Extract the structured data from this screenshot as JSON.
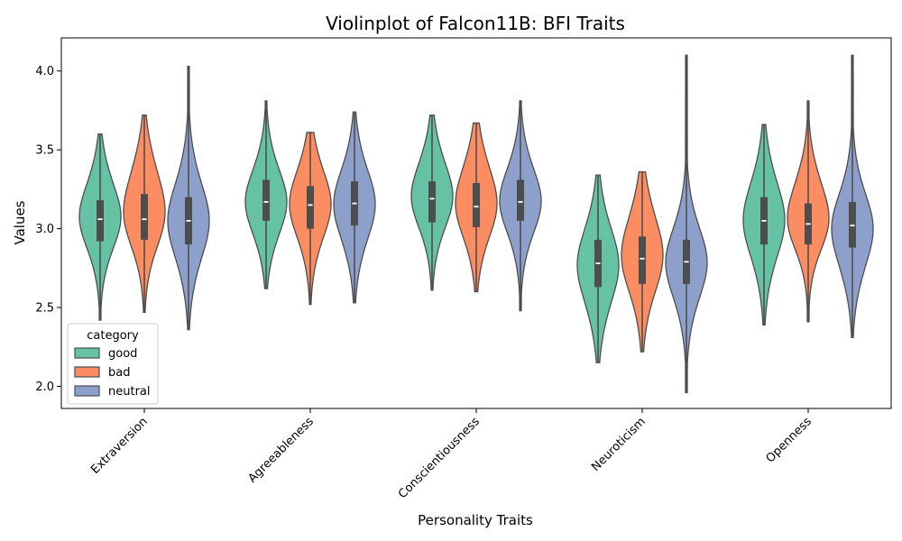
{
  "chart_data": {
    "type": "violin",
    "title": "Violinplot of Falcon11B: BFI Traits",
    "xlabel": "Personality Traits",
    "ylabel": "Values",
    "ylim": [
      1.86,
      4.21
    ],
    "yticks": [
      "2.0",
      "2.5",
      "3.0",
      "3.5",
      "4.0"
    ],
    "categories": [
      "Extraversion",
      "Agreeableness",
      "Conscientiousness",
      "Neuroticism",
      "Openness"
    ],
    "legend": {
      "title": "category",
      "position": "lower-left"
    },
    "series": [
      {
        "name": "good",
        "color": "#66c2a5",
        "stats": [
          {
            "min": 2.42,
            "q1": 2.92,
            "median": 3.06,
            "q3": 3.18,
            "max": 3.6,
            "bulge": 3.09
          },
          {
            "min": 2.62,
            "q1": 3.05,
            "median": 3.17,
            "q3": 3.31,
            "max": 3.81,
            "bulge": 3.17
          },
          {
            "min": 2.61,
            "q1": 3.04,
            "median": 3.19,
            "q3": 3.3,
            "max": 3.72,
            "bulge": 3.22
          },
          {
            "min": 2.15,
            "q1": 2.63,
            "median": 2.78,
            "q3": 2.93,
            "max": 3.34,
            "bulge": 2.76
          },
          {
            "min": 2.39,
            "q1": 2.9,
            "median": 3.05,
            "q3": 3.2,
            "max": 3.66,
            "bulge": 3.06
          }
        ]
      },
      {
        "name": "bad",
        "color": "#fc8d62",
        "stats": [
          {
            "min": 2.47,
            "q1": 2.93,
            "median": 3.06,
            "q3": 3.22,
            "max": 3.72,
            "bulge": 3.15
          },
          {
            "min": 2.52,
            "q1": 3.0,
            "median": 3.15,
            "q3": 3.27,
            "max": 3.61,
            "bulge": 3.16
          },
          {
            "min": 2.6,
            "q1": 3.01,
            "median": 3.14,
            "q3": 3.29,
            "max": 3.67,
            "bulge": 3.18
          },
          {
            "min": 2.22,
            "q1": 2.65,
            "median": 2.81,
            "q3": 2.95,
            "max": 3.36,
            "bulge": 2.85
          },
          {
            "min": 2.41,
            "q1": 2.9,
            "median": 3.03,
            "q3": 3.16,
            "max": 3.81,
            "bulge": 3.1
          }
        ]
      },
      {
        "name": "neutral",
        "color": "#8da0cb",
        "stats": [
          {
            "min": 2.36,
            "q1": 2.9,
            "median": 3.05,
            "q3": 3.2,
            "max": 4.03,
            "bulge": 3.05
          },
          {
            "min": 2.53,
            "q1": 3.02,
            "median": 3.16,
            "q3": 3.3,
            "max": 3.74,
            "bulge": 3.15
          },
          {
            "min": 2.48,
            "q1": 3.05,
            "median": 3.17,
            "q3": 3.31,
            "max": 3.81,
            "bulge": 3.18
          },
          {
            "min": 1.96,
            "q1": 2.65,
            "median": 2.79,
            "q3": 2.93,
            "max": 4.1,
            "bulge": 2.78
          },
          {
            "min": 2.31,
            "q1": 2.88,
            "median": 3.02,
            "q3": 3.17,
            "max": 4.1,
            "bulge": 2.98
          }
        ]
      }
    ]
  }
}
